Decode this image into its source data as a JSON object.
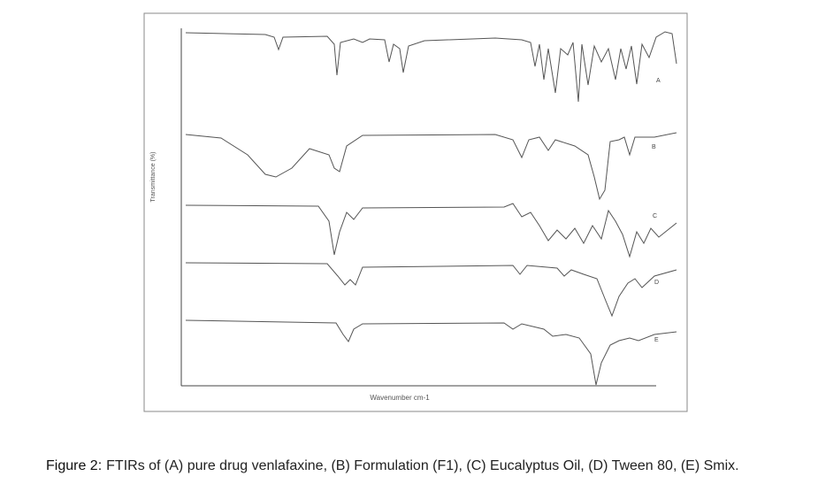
{
  "figure": {
    "y_label": "Transmittance (%)",
    "x_label": "Wavenumber cm-1",
    "trace_labels": [
      "A",
      "B",
      "C",
      "D",
      "E"
    ]
  },
  "caption": {
    "label": "Figure 2:",
    "text": "FTIRs of (A) pure drug venlafaxine, (B) Formulation (F1), (C) Eucalyptus Oil, (D) Tween 80, (E) Smix."
  }
}
